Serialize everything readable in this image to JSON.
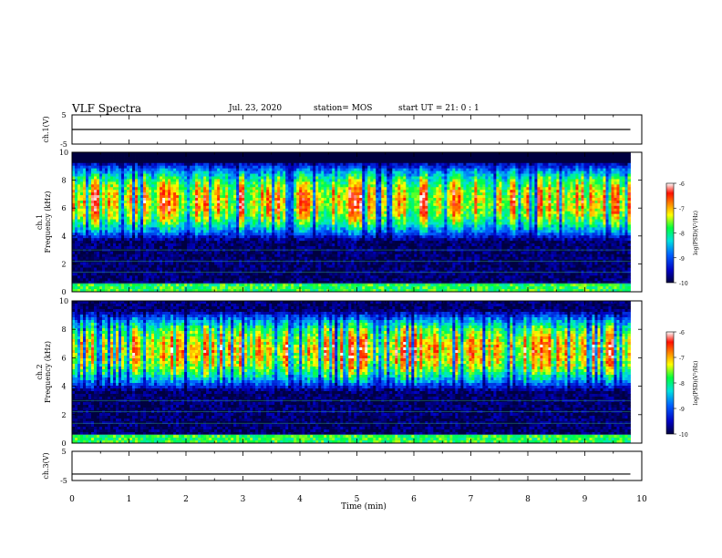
{
  "header": {
    "title": "VLF Spectra",
    "date": "Jul. 23, 2020",
    "station": "station= MOS",
    "start_ut": "start UT =  21: 0  : 1"
  },
  "colorbars": [
    {
      "label": "log(PSD)(V²/Hz)",
      "ticks": [
        "-6",
        "-7",
        "-8",
        "-9",
        "-10"
      ],
      "range": [
        -10,
        -6
      ]
    },
    {
      "label": "log(PSD)(V²/Hz)",
      "ticks": [
        "-6",
        "-7",
        "-8",
        "-9",
        "-10"
      ],
      "range": [
        -10,
        -6
      ]
    }
  ],
  "colors": {
    "high": "#ff2000",
    "mid_high": "#ffff00",
    "mid": "#00ff40",
    "low": "#0040ff",
    "floor": "#000040"
  },
  "chart_data": [
    {
      "type": "line",
      "ylabel": "ch.1(V)",
      "ylim": [
        -5,
        5
      ],
      "yticks": [
        "5",
        "-5"
      ],
      "xlim": [
        0,
        10
      ],
      "series": [
        {
          "x": [
            0,
            9.8
          ],
          "values": [
            0,
            0
          ]
        }
      ]
    },
    {
      "type": "heatmap",
      "ylabel_line1": "ch.1",
      "ylabel_line2": "Frequency (kHz)",
      "ylim": [
        0,
        10
      ],
      "yticks": [
        "0",
        "2",
        "4",
        "6",
        "8",
        "10"
      ],
      "xlim": [
        0,
        10
      ],
      "x_extent": [
        0,
        9.8
      ],
      "band_khz": [
        4.5,
        8.5
      ],
      "peak_khz": 6.5,
      "saturated_above_khz": 9.2,
      "value_range": [
        -10,
        -6
      ]
    },
    {
      "type": "heatmap",
      "ylabel_line1": "ch.2",
      "ylabel_line2": "Frequency (kHz)",
      "ylim": [
        0,
        10
      ],
      "yticks": [
        "0",
        "2",
        "4",
        "6",
        "8",
        "10"
      ],
      "xlim": [
        0,
        10
      ],
      "x_extent": [
        0,
        9.8
      ],
      "band_khz": [
        4.5,
        8.5
      ],
      "peak_khz": 6.5,
      "value_range": [
        -10,
        -6
      ]
    },
    {
      "type": "line",
      "ylabel": "ch.3(V)",
      "ylim": [
        -5,
        5
      ],
      "yticks": [
        "5",
        "-5"
      ],
      "xlim": [
        0,
        10
      ],
      "xlabel": "Time (min)",
      "xticks": [
        "0",
        "1",
        "2",
        "3",
        "4",
        "5",
        "6",
        "7",
        "8",
        "9",
        "10"
      ],
      "series": [
        {
          "x": [
            0,
            9.8
          ],
          "values": [
            -2.8,
            -2.8
          ]
        }
      ]
    }
  ]
}
